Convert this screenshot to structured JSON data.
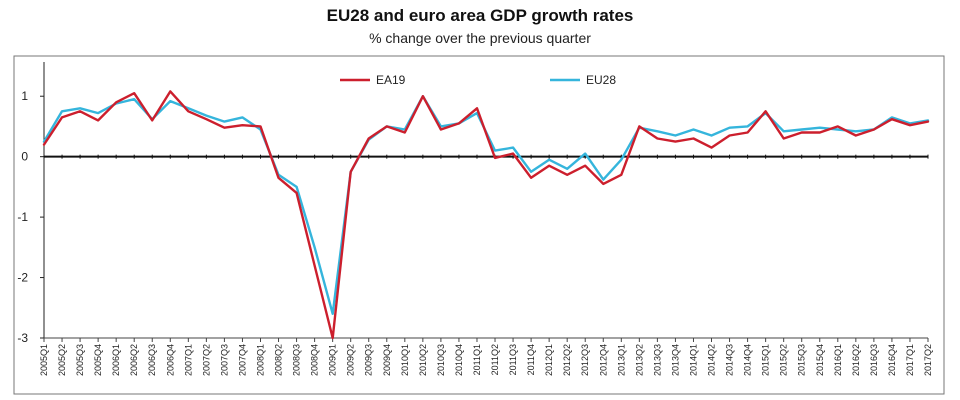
{
  "colors": {
    "ea19": "#cc1f2d",
    "eu28": "#35b5dc"
  },
  "chart_data": {
    "type": "line",
    "title": "EU28 and euro area GDP growth rates",
    "subtitle": "% change over the previous quarter",
    "xlabel": "",
    "ylabel": "",
    "ylim": [
      -3,
      1.5
    ],
    "yticks": [
      1,
      0,
      -1,
      -2,
      -3
    ],
    "legend_position": "top",
    "grid": false,
    "categories": [
      "2005Q1",
      "2005Q2",
      "2005Q3",
      "2005Q4",
      "2006Q1",
      "2006Q2",
      "2006Q3",
      "2006Q4",
      "2007Q1",
      "2007Q2",
      "2007Q3",
      "2007Q4",
      "2008Q1",
      "2008Q2",
      "2008Q3",
      "2008Q4",
      "2009Q1",
      "2009Q2",
      "2009Q3",
      "2009Q4",
      "2010Q1",
      "2010Q2",
      "2010Q3",
      "2010Q4",
      "2011Q1",
      "2011Q2",
      "2011Q3",
      "2011Q4",
      "2012Q1",
      "2012Q2",
      "2012Q3",
      "2012Q4",
      "2013Q1",
      "2013Q2",
      "2013Q3",
      "2013Q4",
      "2014Q1",
      "2014Q2",
      "2014Q3",
      "2014Q4",
      "2015Q1",
      "2015Q2",
      "2015Q3",
      "2015Q4",
      "2016Q1",
      "2016Q2",
      "2016Q3",
      "2016Q4",
      "2017Q1",
      "2017Q2"
    ],
    "series": [
      {
        "name": "EA19",
        "color": "#cc1f2d",
        "values": [
          0.2,
          0.65,
          0.75,
          0.6,
          0.9,
          1.05,
          0.6,
          1.08,
          0.75,
          0.62,
          0.48,
          0.52,
          0.5,
          -0.35,
          -0.6,
          -1.8,
          -3.0,
          -0.25,
          0.3,
          0.5,
          0.4,
          1.0,
          0.45,
          0.55,
          0.8,
          -0.02,
          0.05,
          -0.35,
          -0.15,
          -0.3,
          -0.15,
          -0.45,
          -0.3,
          0.5,
          0.3,
          0.25,
          0.3,
          0.15,
          0.35,
          0.4,
          0.75,
          0.3,
          0.4,
          0.4,
          0.5,
          0.35,
          0.45,
          0.62,
          0.52,
          0.58
        ]
      },
      {
        "name": "EU28",
        "color": "#35b5dc",
        "values": [
          0.25,
          0.75,
          0.8,
          0.72,
          0.88,
          0.95,
          0.62,
          0.92,
          0.8,
          0.68,
          0.58,
          0.65,
          0.45,
          -0.3,
          -0.5,
          -1.5,
          -2.6,
          -0.25,
          0.28,
          0.5,
          0.45,
          1.0,
          0.5,
          0.55,
          0.72,
          0.1,
          0.15,
          -0.25,
          -0.05,
          -0.2,
          0.05,
          -0.38,
          -0.05,
          0.48,
          0.42,
          0.35,
          0.45,
          0.35,
          0.48,
          0.5,
          0.72,
          0.42,
          0.45,
          0.48,
          0.45,
          0.42,
          0.45,
          0.65,
          0.55,
          0.6
        ]
      }
    ]
  }
}
